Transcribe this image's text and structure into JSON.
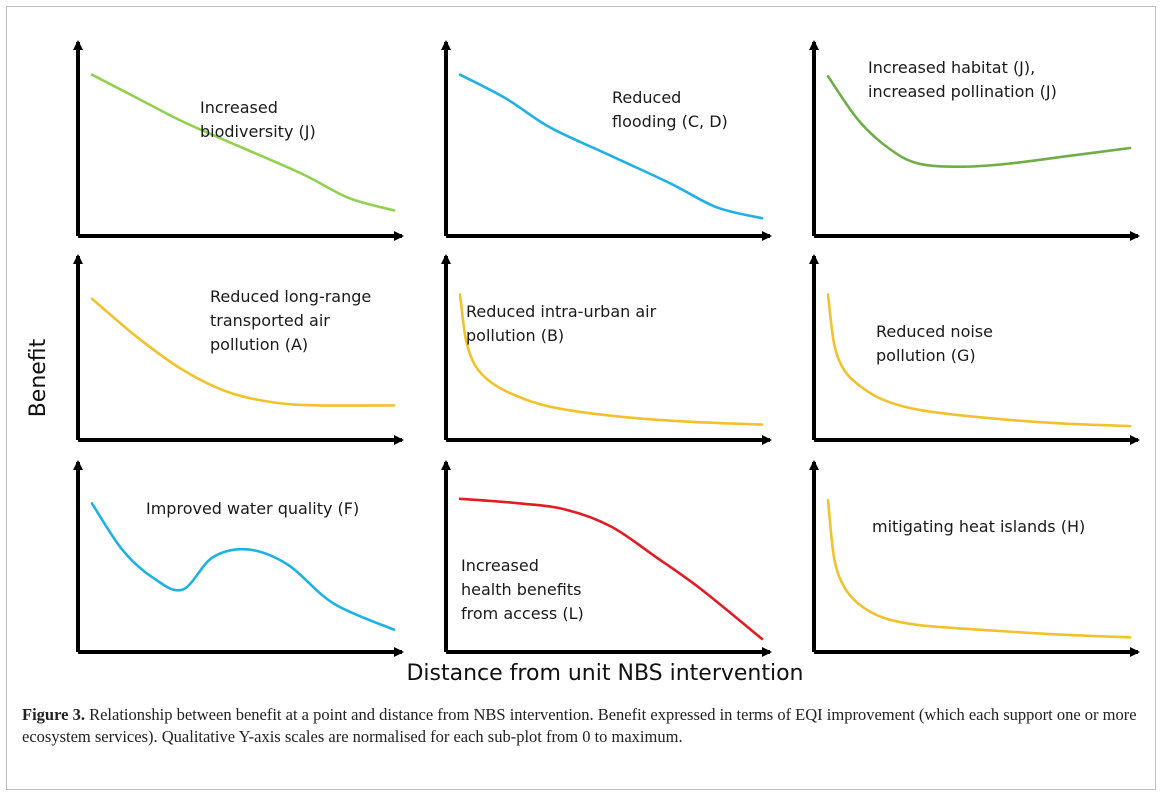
{
  "figure": {
    "ylabel": "Benefit",
    "xlabel": "Distance from unit NBS intervention",
    "caption_label": "Figure 3.",
    "caption_text": "Relationship between benefit at a point and distance from NBS intervention. Benefit expressed in terms of EQI improvement (which each support one or more ecosystem services). Qualitative Y-axis scales are normalised for each sub-plot from 0 to maximum."
  },
  "colors": {
    "green_light": "#92d050",
    "blue": "#1fb1e6",
    "green_dark": "#70ad47",
    "yellow": "#f2c12e",
    "red": "#e31b23",
    "axis": "#000000"
  },
  "chart_data": [
    {
      "type": "line",
      "label_lines": [
        "Increased",
        "biodiversity (J)"
      ],
      "color": "#92d050",
      "xlim": [
        0,
        1
      ],
      "ylim": [
        0,
        1
      ],
      "x": [
        0,
        0.15,
        0.3,
        0.5,
        0.7,
        0.85,
        1
      ],
      "y": [
        0.97,
        0.82,
        0.67,
        0.5,
        0.33,
        0.18,
        0.1
      ]
    },
    {
      "type": "line",
      "label_lines": [
        "Reduced",
        "flooding (C, D)"
      ],
      "color": "#1fb1e6",
      "xlim": [
        0,
        1
      ],
      "ylim": [
        0,
        1
      ],
      "x": [
        0,
        0.15,
        0.3,
        0.5,
        0.7,
        0.85,
        1
      ],
      "y": [
        0.97,
        0.82,
        0.63,
        0.45,
        0.27,
        0.12,
        0.05
      ]
    },
    {
      "type": "line",
      "label_lines": [
        "Increased habitat (J),",
        "increased pollination (J)"
      ],
      "color": "#70ad47",
      "xlim": [
        0,
        1
      ],
      "ylim": [
        0,
        1
      ],
      "x": [
        0,
        0.1,
        0.2,
        0.3,
        0.45,
        0.6,
        0.8,
        1
      ],
      "y": [
        0.96,
        0.68,
        0.5,
        0.4,
        0.38,
        0.4,
        0.45,
        0.5
      ]
    },
    {
      "type": "line",
      "label_lines": [
        "Reduced long-range",
        "transported air",
        "pollution (A)"
      ],
      "color": "#f2c12e",
      "xlim": [
        0,
        1
      ],
      "ylim": [
        0,
        1
      ],
      "x": [
        0,
        0.15,
        0.3,
        0.45,
        0.6,
        0.75,
        1
      ],
      "y": [
        0.9,
        0.64,
        0.42,
        0.27,
        0.2,
        0.18,
        0.18
      ]
    },
    {
      "type": "line",
      "label_lines": [
        "Reduced intra-urban air",
        "pollution (B)"
      ],
      "color": "#f2c12e",
      "xlim": [
        0,
        1
      ],
      "ylim": [
        0,
        1
      ],
      "x": [
        0,
        0.02,
        0.05,
        0.1,
        0.18,
        0.3,
        0.5,
        0.75,
        1
      ],
      "y": [
        0.93,
        0.62,
        0.45,
        0.34,
        0.25,
        0.17,
        0.11,
        0.07,
        0.05
      ]
    },
    {
      "type": "line",
      "label_lines": [
        "Reduced noise",
        "pollution (G)"
      ],
      "color": "#f2c12e",
      "xlim": [
        0,
        1
      ],
      "ylim": [
        0,
        1
      ],
      "x": [
        0,
        0.02,
        0.05,
        0.1,
        0.18,
        0.3,
        0.5,
        0.75,
        1
      ],
      "y": [
        0.93,
        0.6,
        0.43,
        0.32,
        0.22,
        0.15,
        0.1,
        0.06,
        0.04
      ]
    },
    {
      "type": "line",
      "label_lines": [
        "Improved water quality (F)"
      ],
      "color": "#1fb1e6",
      "xlim": [
        0,
        1
      ],
      "ylim": [
        0,
        1
      ],
      "x": [
        0,
        0.1,
        0.2,
        0.3,
        0.4,
        0.52,
        0.65,
        0.8,
        1
      ],
      "y": [
        0.9,
        0.6,
        0.42,
        0.34,
        0.55,
        0.6,
        0.5,
        0.25,
        0.08
      ]
    },
    {
      "type": "line",
      "label_lines": [
        "Increased",
        "health benefits",
        "from access (L)"
      ],
      "color": "#e31b23",
      "xlim": [
        0,
        1
      ],
      "ylim": [
        0,
        1
      ],
      "x": [
        0,
        0.2,
        0.35,
        0.5,
        0.65,
        0.8,
        1
      ],
      "y": [
        0.93,
        0.9,
        0.86,
        0.75,
        0.55,
        0.34,
        0.02
      ]
    },
    {
      "type": "line",
      "label_lines": [
        "mitigating heat islands (H)"
      ],
      "color": "#f2c12e",
      "xlim": [
        0,
        1
      ],
      "ylim": [
        0,
        1
      ],
      "x": [
        0,
        0.02,
        0.05,
        0.1,
        0.18,
        0.3,
        0.5,
        0.75,
        1
      ],
      "y": [
        0.92,
        0.55,
        0.37,
        0.25,
        0.16,
        0.11,
        0.08,
        0.05,
        0.03
      ]
    }
  ]
}
